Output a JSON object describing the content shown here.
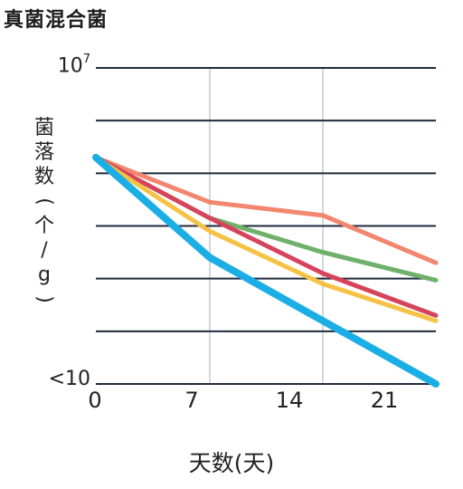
{
  "title": "真菌混合菌",
  "chart_data": {
    "type": "line",
    "title": "真菌混合菌",
    "xlabel": "天数(天)",
    "ylabel": "菌落数(个/g)",
    "x_ticks": [
      "0",
      "7",
      "14",
      "21"
    ],
    "y_tick_top": {
      "base": "10",
      "exp": "7"
    },
    "y_tick_bottom": "<10",
    "xlim": [
      0,
      24
    ],
    "ylim": [
      1,
      7
    ],
    "y_scale": "log10",
    "grid": {
      "horizontal": true,
      "vertical_at_markers": true
    },
    "vertical_markers": [
      7,
      14
    ],
    "series": [
      {
        "color": "#F2866E",
        "x": [
          0,
          7,
          14,
          21
        ],
        "y": [
          5.3,
          4.45,
          4.2,
          3.3
        ]
      },
      {
        "color": "#6FB06A",
        "x": [
          0,
          7,
          14,
          21
        ],
        "y": [
          5.3,
          4.15,
          3.5,
          2.97
        ]
      },
      {
        "color": "#D6445C",
        "x": [
          0,
          7,
          14,
          21
        ],
        "y": [
          5.3,
          4.15,
          3.1,
          2.3
        ]
      },
      {
        "color": "#F5C244",
        "x": [
          0,
          7,
          14,
          21
        ],
        "y": [
          5.3,
          3.9,
          2.9,
          2.2
        ]
      },
      {
        "color": "#1BAEE5",
        "x": [
          0,
          7,
          14,
          21
        ],
        "y": [
          5.3,
          3.4,
          2.2,
          1.0
        ]
      }
    ]
  }
}
